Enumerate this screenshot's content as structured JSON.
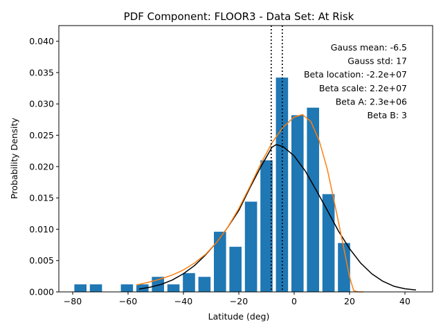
{
  "chart_data": {
    "type": "bar",
    "title": "PDF Component: FLOOR3 - Data Set: At Risk",
    "xlabel": "Latitude (deg)",
    "ylabel": "Probability Density",
    "xlim": [
      -85,
      50
    ],
    "ylim": [
      0,
      0.0425
    ],
    "xticks": [
      -80,
      -60,
      -40,
      -20,
      0,
      20,
      40
    ],
    "xtick_labels": [
      "−80",
      "−60",
      "−40",
      "−20",
      "0",
      "20",
      "40"
    ],
    "yticks": [
      0,
      0.005,
      0.01,
      0.015,
      0.02,
      0.025,
      0.03,
      0.035,
      0.04
    ],
    "ytick_labels": [
      "0.000",
      "0.005",
      "0.010",
      "0.015",
      "0.020",
      "0.025",
      "0.030",
      "0.035",
      "0.040"
    ],
    "grid": false,
    "bar_color": "#1f77b4",
    "bar_width": 4.4,
    "bars": {
      "x": [
        -77.2,
        -71.6,
        -60.4,
        -54.8,
        -49.2,
        -43.6,
        -38.0,
        -32.4,
        -26.8,
        -21.2,
        -15.6,
        -10.0,
        -4.4,
        1.2,
        6.8,
        12.4,
        18.0
      ],
      "values": [
        0.0012,
        0.0012,
        0.0012,
        0.0012,
        0.0024,
        0.0012,
        0.003,
        0.0024,
        0.0096,
        0.0072,
        0.0144,
        0.021,
        0.0342,
        0.0282,
        0.0294,
        0.0156,
        0.0078
      ]
    },
    "series": [
      {
        "color": "#000000",
        "x": [
          -56,
          -52,
          -48,
          -44,
          -40,
          -36,
          -32,
          -28,
          -24,
          -20,
          -16,
          -12,
          -8,
          -6.5,
          -4,
          0,
          4,
          8,
          12,
          16,
          20,
          24,
          28,
          32,
          36,
          40,
          44
        ],
        "values": [
          0.00045,
          0.00075,
          0.0012,
          0.0019,
          0.0029,
          0.0042,
          0.0059,
          0.0079,
          0.0103,
          0.013,
          0.0166,
          0.02,
          0.0231,
          0.0235,
          0.0232,
          0.0217,
          0.0193,
          0.0162,
          0.013,
          0.0097,
          0.0069,
          0.0046,
          0.0029,
          0.0017,
          0.0009,
          0.0005,
          0.0003
        ]
      },
      {
        "color": "#ff7f0e",
        "x": [
          -57,
          -52,
          -48,
          -44,
          -40,
          -36,
          -32,
          -28,
          -24,
          -20,
          -16,
          -12,
          -8,
          -4,
          0,
          3,
          6,
          9,
          12,
          15,
          18,
          20,
          21.5,
          23,
          25
        ],
        "values": [
          0.0011,
          0.0016,
          0.0021,
          0.0027,
          0.0035,
          0.0046,
          0.006,
          0.0079,
          0.0103,
          0.0133,
          0.0168,
          0.0205,
          0.0238,
          0.0263,
          0.0279,
          0.0283,
          0.0272,
          0.0242,
          0.0195,
          0.0133,
          0.0068,
          0.0024,
          0.0002,
          0.0,
          0.0
        ]
      }
    ],
    "vlines": [
      -8.3,
      -4.3
    ],
    "annotations": [
      "Gauss mean: -6.5",
      "Gauss std: 17",
      "Beta location: -2.2e+07",
      "Beta scale: 2.2e+07",
      "Beta A: 2.3e+06",
      "Beta B: 3"
    ]
  }
}
